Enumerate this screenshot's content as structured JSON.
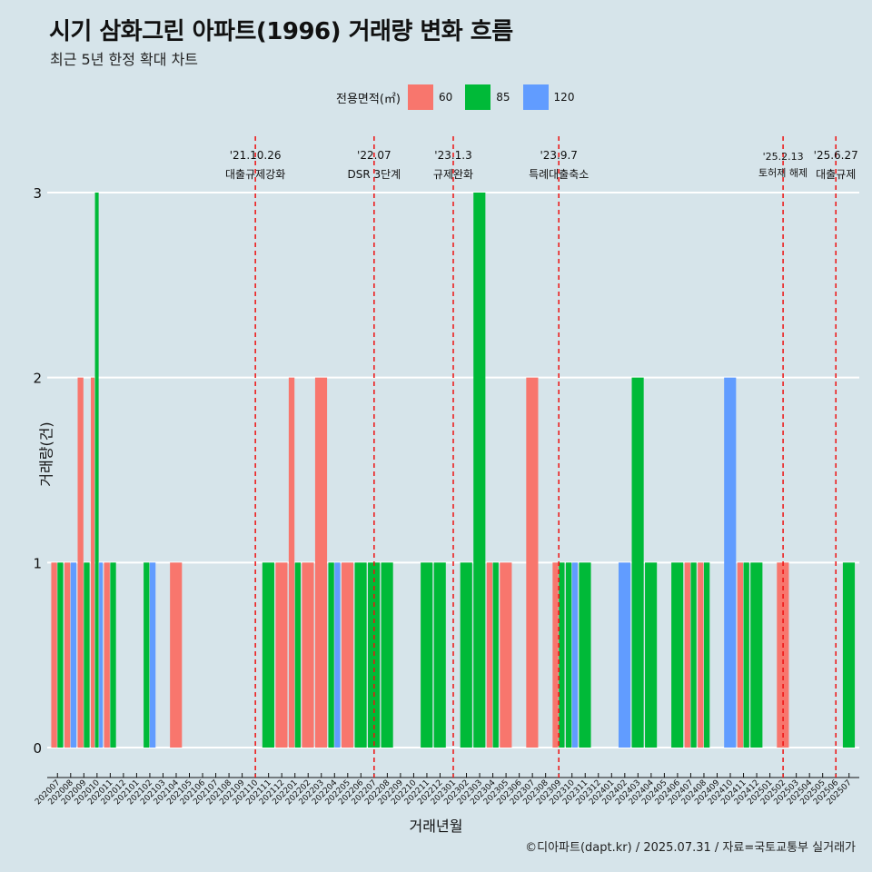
{
  "title": "시기 삼화그린 아파트(1996) 거래량 변화 흐름",
  "subtitle": "최근 5년 한정 확대 차트",
  "caption": "©디아파트(dapt.kr) / 2025.07.31 / 자료=국토교통부 실거래가",
  "legend": {
    "title": "전용면적(㎡)",
    "items": [
      {
        "label": "60",
        "color": "#f8766d"
      },
      {
        "label": "85",
        "color": "#00ba38"
      },
      {
        "label": "120",
        "color": "#619cff"
      }
    ]
  },
  "chart_data": {
    "type": "bar",
    "xlabel": "거래년월",
    "ylabel": "거래량(건)",
    "ylim": [
      0,
      3
    ],
    "yticks": [
      0,
      1,
      2,
      3
    ],
    "categories": [
      "202007",
      "202008",
      "202009",
      "202010",
      "202011",
      "202012",
      "202101",
      "202102",
      "202103",
      "202104",
      "202105",
      "202106",
      "202107",
      "202108",
      "202109",
      "202110",
      "202111",
      "202112",
      "202201",
      "202202",
      "202203",
      "202204",
      "202205",
      "202206",
      "202207",
      "202208",
      "202209",
      "202210",
      "202211",
      "202212",
      "202301",
      "202302",
      "202303",
      "202304",
      "202305",
      "202306",
      "202307",
      "202308",
      "202309",
      "202310",
      "202311",
      "202312",
      "202401",
      "202402",
      "202403",
      "202404",
      "202405",
      "202406",
      "202407",
      "202408",
      "202409",
      "202410",
      "202411",
      "202412",
      "202501",
      "202502",
      "202503",
      "202504",
      "202505",
      "202506",
      "202507"
    ],
    "series": [
      {
        "name": "60",
        "values": [
          1,
          1,
          2,
          2,
          1,
          0,
          0,
          0,
          0,
          1,
          0,
          0,
          0,
          0,
          0,
          0,
          0,
          1,
          2,
          1,
          2,
          0,
          1,
          0,
          0,
          0,
          0,
          0,
          0,
          0,
          0,
          0,
          0,
          1,
          1,
          0,
          2,
          0,
          1,
          0,
          0,
          0,
          0,
          0,
          0,
          0,
          0,
          0,
          1,
          1,
          0,
          0,
          1,
          0,
          0,
          1,
          0,
          0,
          0,
          0,
          0
        ]
      },
      {
        "name": "85",
        "values": [
          1,
          0,
          1,
          3,
          1,
          0,
          0,
          1,
          0,
          0,
          0,
          0,
          0,
          0,
          0,
          0,
          1,
          0,
          1,
          0,
          0,
          1,
          0,
          1,
          1,
          1,
          0,
          0,
          1,
          1,
          0,
          1,
          3,
          1,
          0,
          0,
          0,
          0,
          1,
          1,
          1,
          0,
          0,
          0,
          2,
          1,
          0,
          1,
          1,
          1,
          0,
          0,
          1,
          1,
          0,
          0,
          0,
          0,
          0,
          0,
          1
        ]
      },
      {
        "name": "120",
        "values": [
          0,
          1,
          0,
          1,
          0,
          0,
          0,
          1,
          0,
          0,
          0,
          0,
          0,
          0,
          0,
          0,
          0,
          0,
          0,
          0,
          0,
          1,
          0,
          0,
          0,
          0,
          0,
          0,
          0,
          0,
          0,
          0,
          0,
          0,
          0,
          0,
          0,
          0,
          0,
          1,
          0,
          0,
          0,
          1,
          0,
          0,
          0,
          0,
          0,
          0,
          0,
          2,
          0,
          0,
          0,
          0,
          0,
          0,
          0,
          0,
          0
        ]
      }
    ],
    "annotations": [
      {
        "x": "202110",
        "date": "'21.10.26",
        "text": "대출규제강화"
      },
      {
        "x": "202207",
        "date": "'22.07",
        "text": "DSR 3단계"
      },
      {
        "x": "202301",
        "date": "'23.1.3",
        "text": "규제완화"
      },
      {
        "x": "202309",
        "date": "'23.9.7",
        "text": "특례대출축소"
      },
      {
        "x": "202502",
        "date": "'25.2.13",
        "text": "토허제 해제"
      },
      {
        "x": "202506",
        "date": "'25.6.27",
        "text": "대출규제"
      }
    ],
    "grid": "horizontal",
    "legend_position": "top"
  }
}
